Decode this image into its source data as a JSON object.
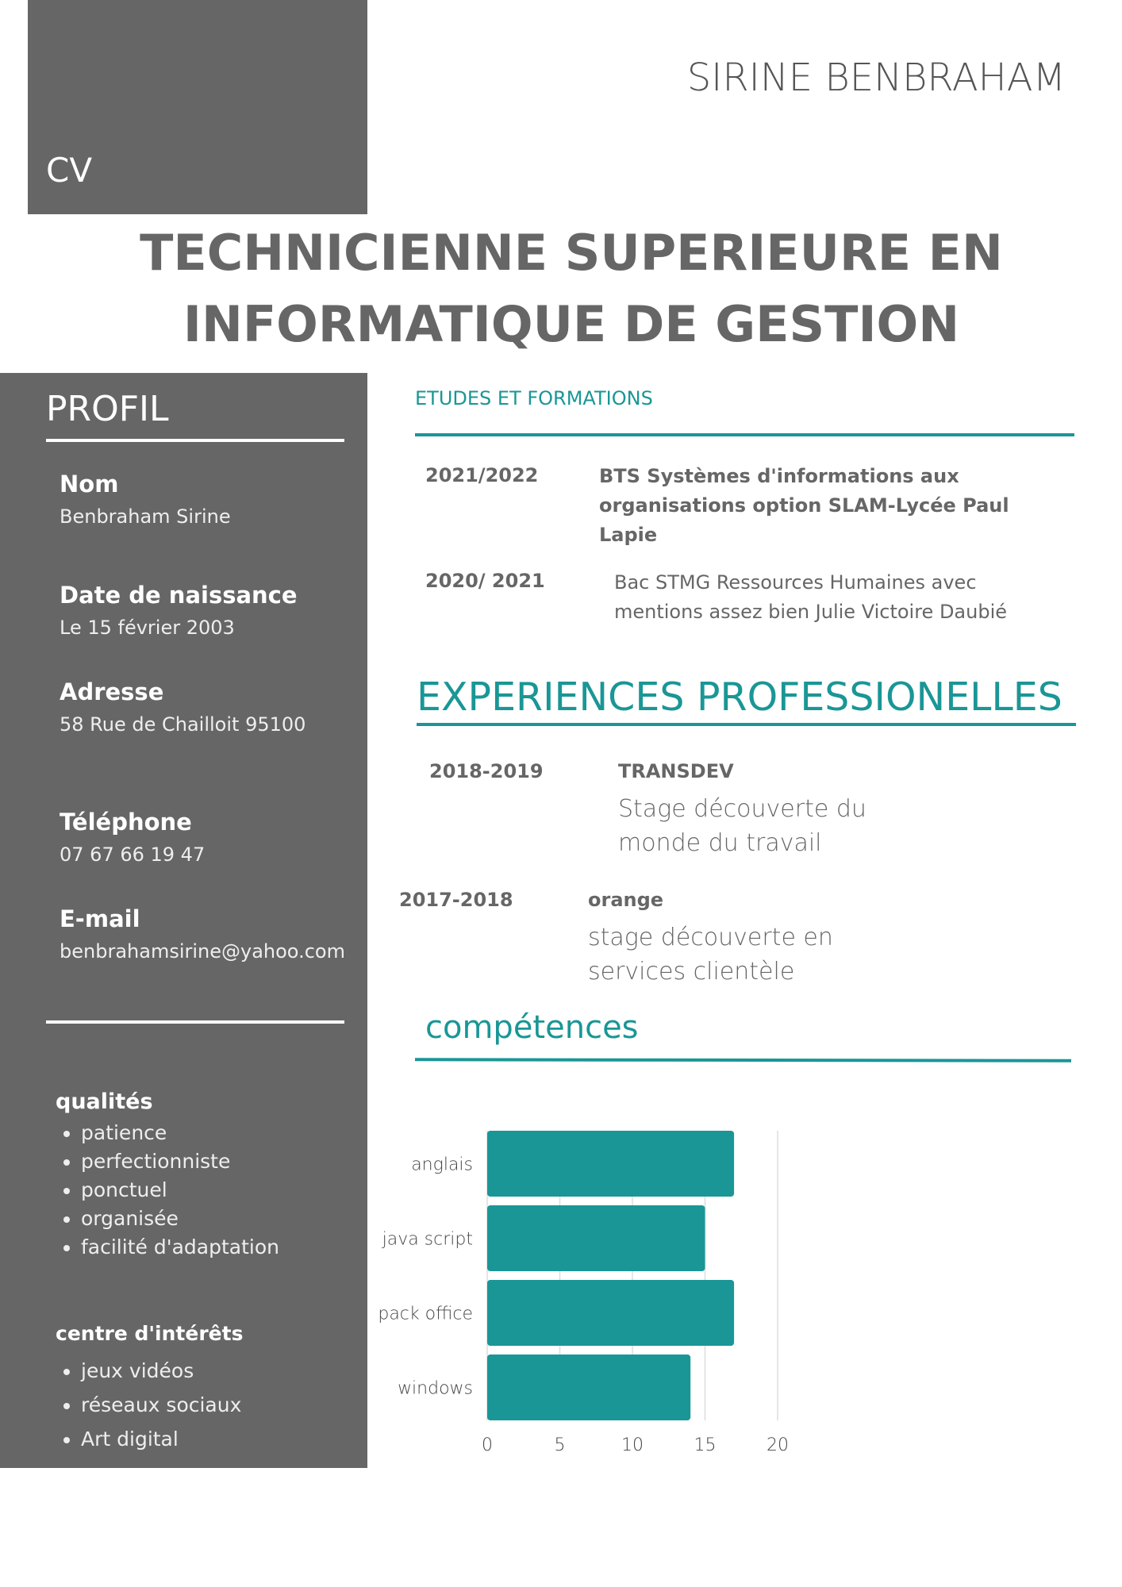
{
  "header": {
    "cv_label": "CV",
    "name": "SIRINE BENBRAHAM",
    "title_line1": "TECHNICIENNE SUPERIEURE EN",
    "title_line2": "INFORMATIQUE DE GESTION"
  },
  "profile": {
    "heading": "PROFIL",
    "fields": [
      {
        "label": "Nom",
        "value": "Benbraham Sirine"
      },
      {
        "label": "Date de naissance",
        "value": "Le 15 février 2003"
      },
      {
        "label": "Adresse",
        "value": "58 Rue de Chailloit 95100"
      },
      {
        "label": "Téléphone",
        "value": "07 67 66 19 47"
      },
      {
        "label": "E-mail",
        "value": "benbrahamsirine@yahoo.com"
      }
    ],
    "qualities_heading": "qualités",
    "qualities": [
      "patience",
      "perfectionniste",
      "ponctuel",
      "organisée",
      "facilité d'adaptation"
    ],
    "interests_heading": "centre d'intérêts",
    "interests": [
      "jeux vidéos",
      "réseaux sociaux",
      "Art digital"
    ]
  },
  "education": {
    "heading": "ETUDES ET FORMATIONS",
    "items": [
      {
        "year": "2021/2022",
        "text": "BTS Systèmes d'informations aux organisations option SLAM-Lycée Paul Lapie"
      },
      {
        "year": "2020/ 2021",
        "text": "Bac STMG Ressources Humaines avec mentions assez bien Julie Victoire Daubié"
      }
    ]
  },
  "experience": {
    "heading": "EXPERIENCES PROFESSIONELLES",
    "items": [
      {
        "year": "2018-2019",
        "company": "TRANSDEV",
        "text": "Stage découverte du monde du travail"
      },
      {
        "year": "2017-2018",
        "company": "orange",
        "text": "stage découverte en services clientèle"
      }
    ]
  },
  "skills": {
    "heading": "compétences"
  },
  "colors": {
    "accent": "#1a9696",
    "sidebar": "#666666"
  },
  "chart_data": {
    "type": "bar",
    "orientation": "horizontal",
    "categories": [
      "anglais",
      "java script",
      "pack office",
      "windows"
    ],
    "values": [
      17,
      15,
      17,
      14
    ],
    "xlim": [
      0,
      20
    ],
    "xticks": [
      0,
      5,
      10,
      15,
      20
    ],
    "grid": true
  }
}
